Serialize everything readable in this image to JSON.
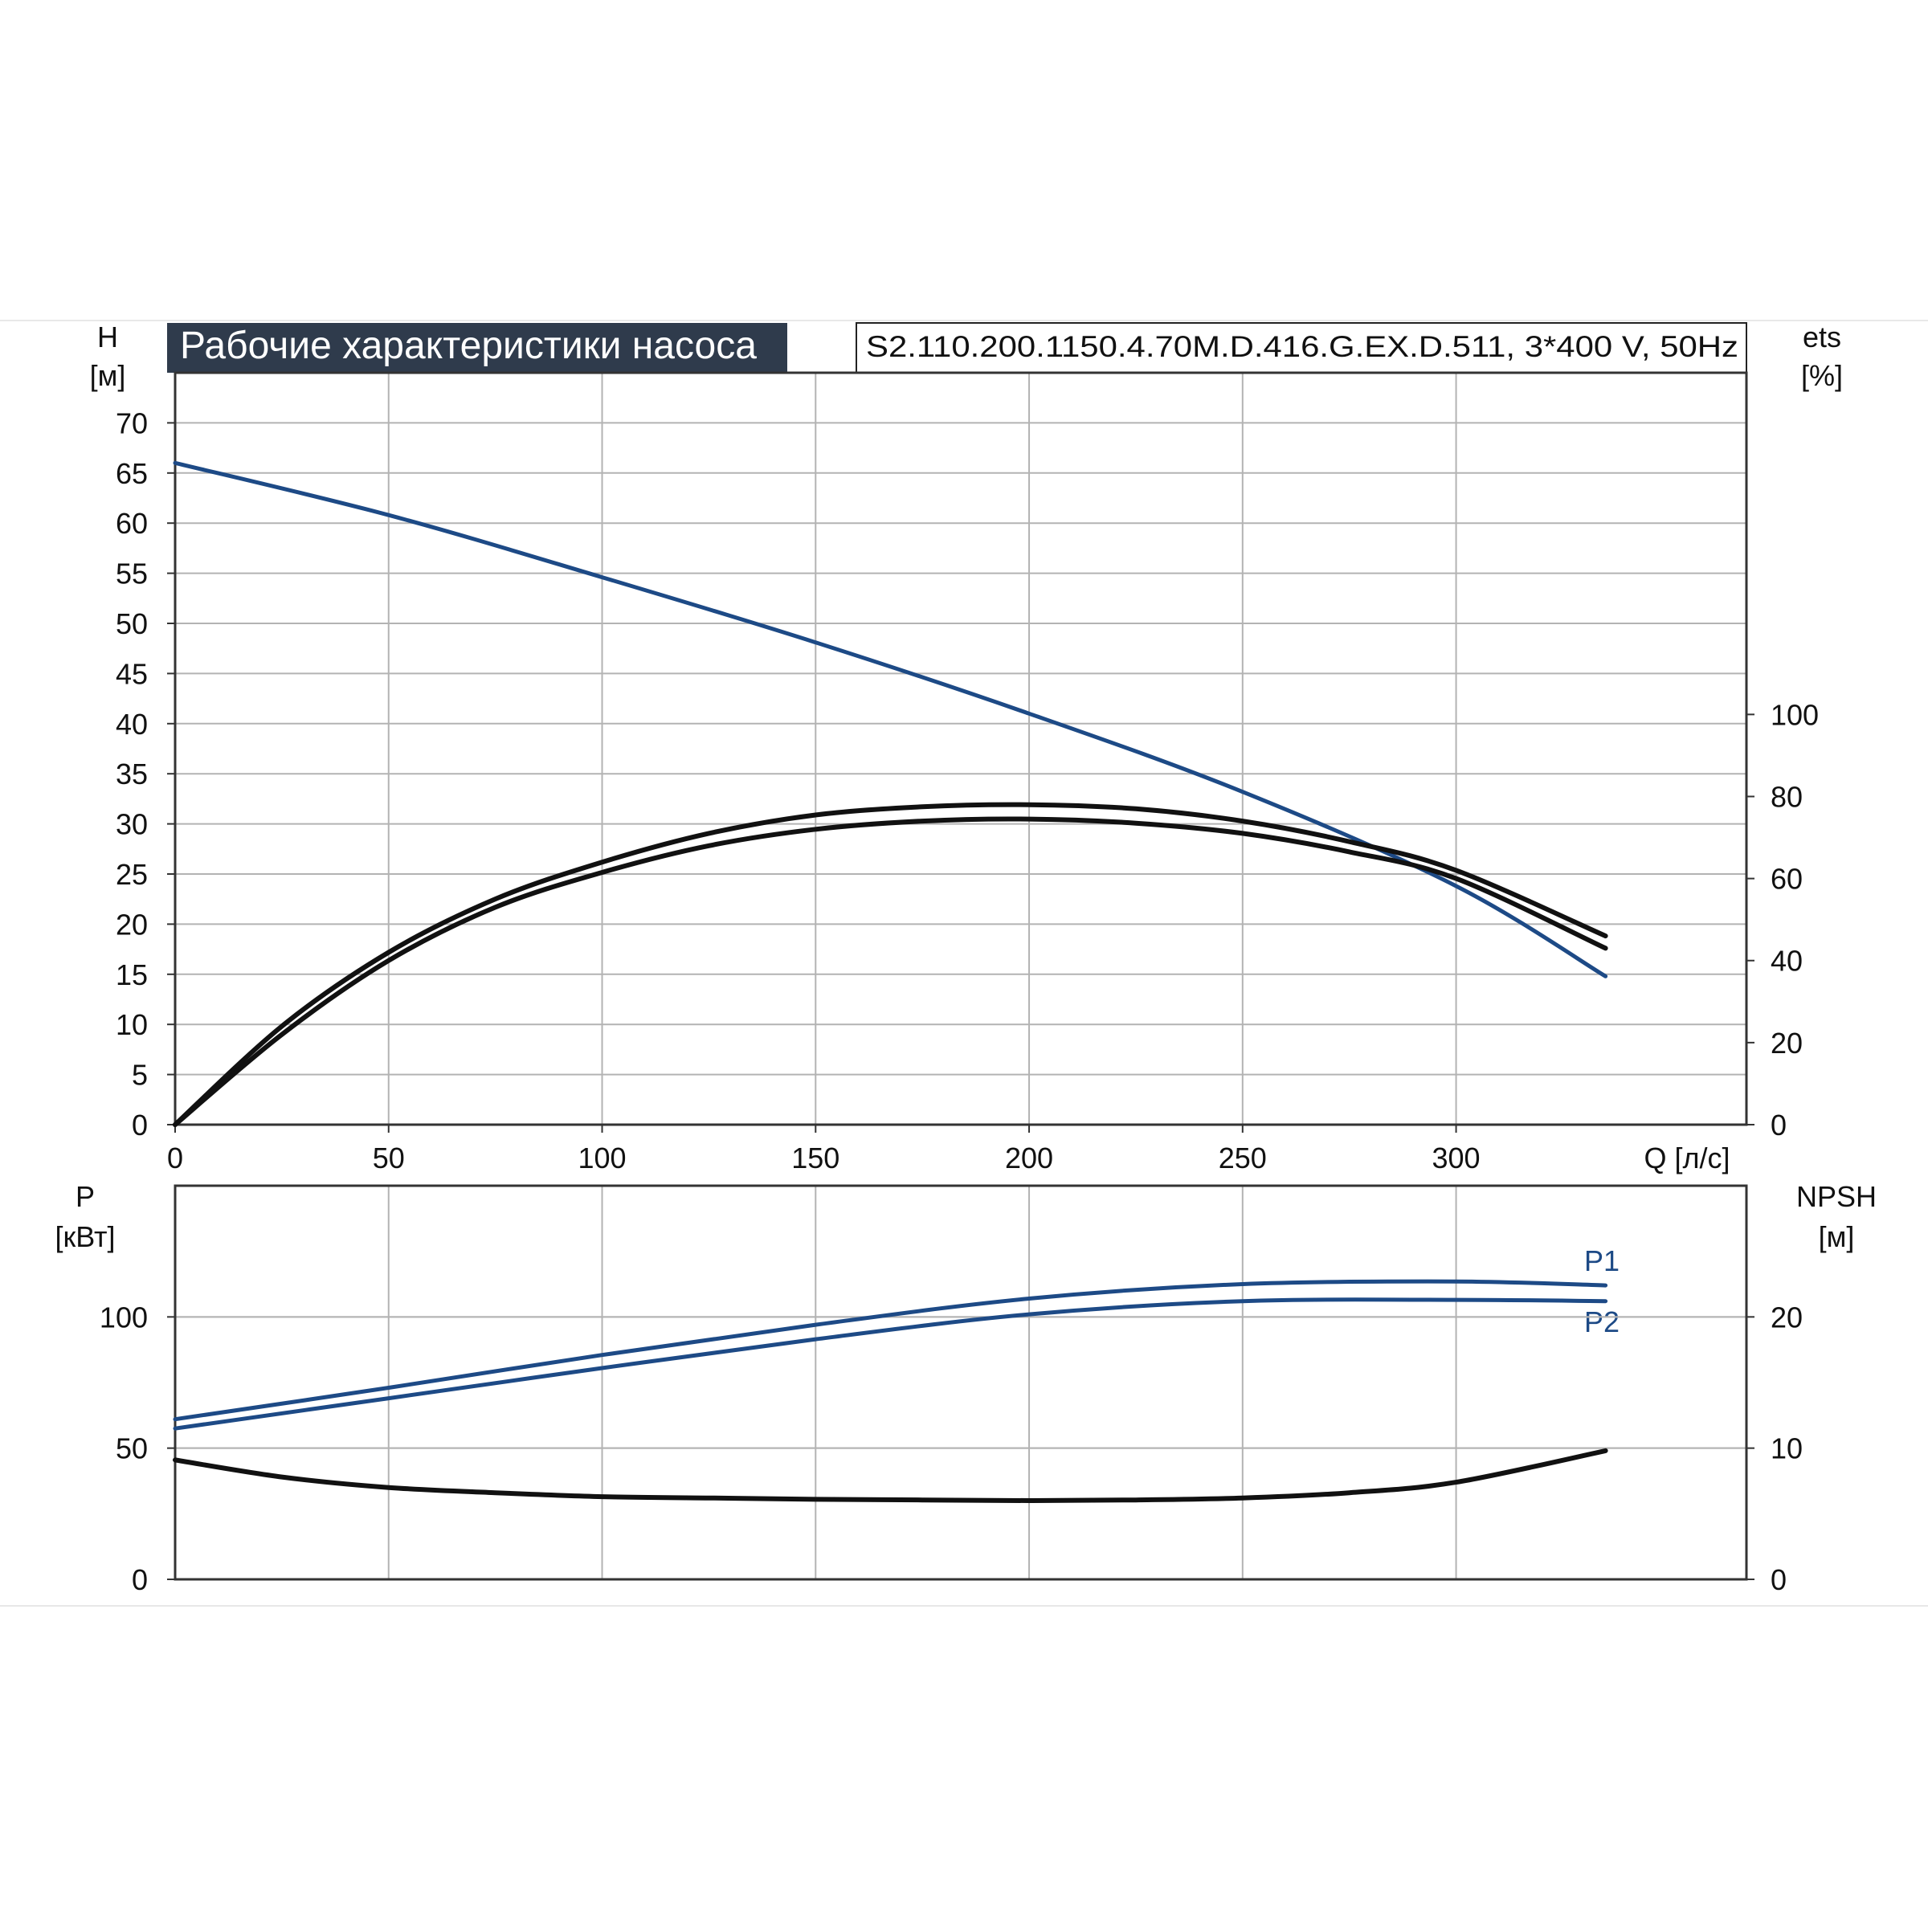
{
  "title": "Рабочие характеристики насоса",
  "model": "S2.110.200.1150.4.70M.D.416.G.EX.D.511, 3*400 V, 50Hz",
  "colors": {
    "blue": "#1d4a86",
    "black": "#111111",
    "title_bg": "#2f3b4c",
    "grid": "#b3b3b3"
  },
  "chart_data": [
    {
      "type": "line",
      "xlabel": "Q [л/с]",
      "x_ticks": [
        "0",
        "50",
        "100",
        "150",
        "200",
        "250",
        "300"
      ],
      "xlim": [
        0,
        368
      ],
      "y_axis_left": {
        "label": "H",
        "unit": "[м]",
        "ticks": [
          "0",
          "5",
          "10",
          "15",
          "20",
          "25",
          "30",
          "35",
          "40",
          "45",
          "50",
          "55",
          "60",
          "65",
          "70"
        ],
        "ylim": [
          0,
          75
        ]
      },
      "y_axis_right": {
        "label": "ets",
        "unit": "[%]",
        "ticks": [
          "0",
          "20",
          "40",
          "60",
          "80",
          "100"
        ],
        "ylim": [
          0,
          183.3
        ]
      },
      "grid": true,
      "series": [
        {
          "axis": "left",
          "color": "#1d4a86",
          "x": [
            0,
            50,
            100,
            150,
            200,
            250,
            300,
            335
          ],
          "y": [
            66,
            60.8,
            54.6,
            48.1,
            41.0,
            33.2,
            23.8,
            14.8
          ]
        },
        {
          "axis": "right",
          "color": "#111111",
          "x": [
            0,
            25,
            50,
            75,
            100,
            125,
            150,
            175,
            200,
            225,
            250,
            275,
            300,
            335
          ],
          "y": [
            0,
            24,
            42,
            55,
            64,
            71,
            75.5,
            77.5,
            78,
            77,
            74,
            69,
            62,
            46
          ]
        },
        {
          "axis": "right",
          "color": "#111111",
          "x": [
            0,
            25,
            50,
            75,
            100,
            125,
            150,
            175,
            200,
            225,
            250,
            275,
            300,
            335
          ],
          "y": [
            0,
            22,
            40,
            53,
            61.5,
            68,
            72,
            74,
            74.5,
            73.5,
            71,
            66.5,
            60,
            43
          ]
        }
      ]
    },
    {
      "type": "line",
      "xlim": [
        0,
        368
      ],
      "y_axis_left": {
        "label": "P",
        "unit": "[кВт]",
        "ticks": [
          "0",
          "50",
          "100"
        ],
        "ylim": [
          0,
          150
        ]
      },
      "y_axis_right": {
        "label": "NPSH",
        "unit": "[м]",
        "ticks": [
          "0",
          "10",
          "20"
        ],
        "ylim": [
          0,
          30
        ]
      },
      "grid": true,
      "series": [
        {
          "name": "P1",
          "axis": "left",
          "color": "#1d4a86",
          "x": [
            0,
            50,
            100,
            150,
            200,
            250,
            300,
            335
          ],
          "y": [
            61,
            73,
            85.5,
            97,
            107,
            112.5,
            113.5,
            112
          ]
        },
        {
          "name": "P2",
          "axis": "left",
          "color": "#1d4a86",
          "x": [
            0,
            50,
            100,
            150,
            200,
            250,
            300,
            335
          ],
          "y": [
            57.5,
            69,
            80.5,
            91.5,
            101,
            106,
            106.5,
            106
          ]
        },
        {
          "axis": "right",
          "color": "#111111",
          "x": [
            0,
            25,
            50,
            75,
            100,
            125,
            150,
            175,
            200,
            225,
            250,
            275,
            300,
            335
          ],
          "y": [
            9.1,
            7.8,
            7.0,
            6.6,
            6.3,
            6.2,
            6.1,
            6.05,
            6.0,
            6.05,
            6.2,
            6.6,
            7.4,
            9.8
          ]
        }
      ]
    }
  ]
}
